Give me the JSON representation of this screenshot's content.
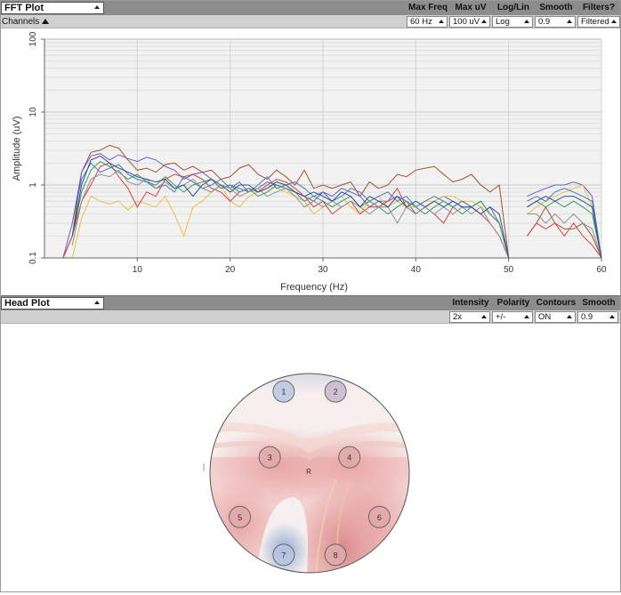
{
  "fft_panel": {
    "widget_label": "FFT Plot",
    "channels_label": "Channels",
    "controls": [
      {
        "label": "Max Freq",
        "value": "60 Hz"
      },
      {
        "label": "Max uV",
        "value": "100 uV"
      },
      {
        "label": "Log/Lin",
        "value": "Log"
      },
      {
        "label": "Smooth",
        "value": "0.9"
      },
      {
        "label": "Filters?",
        "value": "Filtered"
      }
    ]
  },
  "head_panel": {
    "widget_label": "Head Plot",
    "controls": [
      {
        "label": "Intensity",
        "value": "2x"
      },
      {
        "label": "Polarity",
        "value": "+/-"
      },
      {
        "label": "Contours",
        "value": "ON"
      },
      {
        "label": "Smooth",
        "value": "0.9"
      }
    ],
    "reference_label": "R",
    "electrodes": [
      {
        "label": "1",
        "fx": 0.37,
        "fy": 0.09,
        "polarity": "neg"
      },
      {
        "label": "2",
        "fx": 0.63,
        "fy": 0.09,
        "polarity": "neutral"
      },
      {
        "label": "3",
        "fx": 0.3,
        "fy": 0.42,
        "polarity": "pos"
      },
      {
        "label": "4",
        "fx": 0.7,
        "fy": 0.42,
        "polarity": "pos"
      },
      {
        "label": "5",
        "fx": 0.15,
        "fy": 0.72,
        "polarity": "pos"
      },
      {
        "label": "6",
        "fx": 0.85,
        "fy": 0.72,
        "polarity": "pos"
      },
      {
        "label": "7",
        "fx": 0.37,
        "fy": 0.91,
        "polarity": "neg"
      },
      {
        "label": "8",
        "fx": 0.63,
        "fy": 0.91,
        "polarity": "pos"
      }
    ]
  },
  "chart_data": {
    "type": "line",
    "title": "",
    "xlabel": "Frequency (Hz)",
    "ylabel": "Amplitude (uV)",
    "xlim": [
      0,
      60
    ],
    "ylim": [
      0.1,
      100
    ],
    "yscale": "log",
    "grid": true,
    "x_ticks": [
      10,
      20,
      30,
      40,
      50,
      60
    ],
    "y_ticks": [
      0.1,
      1,
      10,
      100
    ],
    "x_tick_labels": [
      "10",
      "20",
      "30",
      "40",
      "50",
      "60"
    ],
    "y_tick_labels": [
      "0.1",
      "1",
      "10",
      "100"
    ],
    "x": [
      1,
      2,
      3,
      4,
      5,
      6,
      7,
      8,
      9,
      10,
      11,
      12,
      13,
      14,
      15,
      16,
      17,
      18,
      19,
      20,
      21,
      22,
      23,
      24,
      25,
      26,
      27,
      28,
      29,
      30,
      31,
      32,
      33,
      34,
      35,
      36,
      37,
      38,
      39,
      40,
      41,
      42,
      43,
      44,
      45,
      46,
      47,
      48,
      49,
      50,
      51,
      52,
      53,
      54,
      55,
      56,
      57,
      58,
      59,
      60
    ],
    "series": [
      {
        "color": "#a0522d",
        "values": [
          0.1,
          0.1,
          0.2,
          1.5,
          2.8,
          3.0,
          3.5,
          3.2,
          2.2,
          1.6,
          1.7,
          1.5,
          1.9,
          2.0,
          1.6,
          1.8,
          1.5,
          1.6,
          1.2,
          1.3,
          1.7,
          1.9,
          1.4,
          1.2,
          1.6,
          1.3,
          1.0,
          1.6,
          0.9,
          1.0,
          0.9,
          1.0,
          1.1,
          0.7,
          1.1,
          0.9,
          1.0,
          1.4,
          1.3,
          1.6,
          1.7,
          1.8,
          1.4,
          1.1,
          1.2,
          1.4,
          1.0,
          0.8,
          1.0,
          0.1,
          null,
          0.2,
          0.3,
          0.5,
          0.3,
          0.25,
          0.25,
          0.3,
          0.2,
          0.1
        ]
      },
      {
        "color": "#6a5acd",
        "values": [
          null,
          0.1,
          0.3,
          1.5,
          2.5,
          2.7,
          2.2,
          2.6,
          2.3,
          2.1,
          2.4,
          2.2,
          1.8,
          1.6,
          1.2,
          1.4,
          1.5,
          1.2,
          0.9,
          1.0,
          0.9,
          0.8,
          0.9,
          1.1,
          1.0,
          0.9,
          0.8,
          0.7,
          0.6,
          0.8,
          0.7,
          0.9,
          0.8,
          0.7,
          0.5,
          0.6,
          0.6,
          0.7,
          0.6,
          0.4,
          0.5,
          0.6,
          0.7,
          0.6,
          0.5,
          0.5,
          0.4,
          0.5,
          0.3,
          0.1,
          null,
          0.7,
          0.8,
          0.9,
          1.0,
          1.0,
          1.1,
          1.0,
          0.7,
          0.1
        ]
      },
      {
        "color": "#e8c040",
        "values": [
          null,
          null,
          0.1,
          0.35,
          0.7,
          0.6,
          0.55,
          0.6,
          0.45,
          0.6,
          0.55,
          0.5,
          0.7,
          0.4,
          0.2,
          0.5,
          0.6,
          0.8,
          1.0,
          0.6,
          0.5,
          0.7,
          0.8,
          1.0,
          0.9,
          0.8,
          0.7,
          0.6,
          0.4,
          0.5,
          0.6,
          0.7,
          0.5,
          0.4,
          0.6,
          0.7,
          0.5,
          0.6,
          0.5,
          0.5,
          0.6,
          0.6,
          0.7,
          0.7,
          0.6,
          0.6,
          0.5,
          0.4,
          0.3,
          0.1,
          null,
          0.4,
          0.5,
          0.6,
          0.7,
          0.8,
          0.9,
          1.0,
          0.5,
          0.1
        ]
      },
      {
        "color": "#d84040",
        "values": [
          null,
          0.1,
          0.2,
          0.6,
          1.0,
          1.8,
          2.0,
          1.3,
          0.9,
          0.5,
          0.8,
          0.7,
          1.2,
          1.4,
          1.3,
          1.4,
          1.2,
          0.9,
          0.8,
          0.6,
          0.8,
          0.9,
          0.8,
          1.0,
          1.2,
          1.1,
          0.9,
          0.7,
          0.5,
          0.6,
          0.4,
          0.5,
          0.6,
          0.4,
          0.5,
          0.5,
          0.6,
          0.9,
          0.5,
          0.4,
          0.5,
          0.4,
          0.3,
          0.5,
          0.6,
          0.5,
          0.4,
          0.3,
          0.2,
          0.1,
          null,
          0.2,
          0.3,
          0.25,
          0.3,
          0.2,
          0.3,
          0.2,
          0.15,
          0.1
        ]
      },
      {
        "color": "#4a7ab8",
        "values": [
          null,
          null,
          0.3,
          1.2,
          2.0,
          1.5,
          1.7,
          1.9,
          1.4,
          1.2,
          1.1,
          0.9,
          1.0,
          0.8,
          1.3,
          1.1,
          0.9,
          1.0,
          1.2,
          0.9,
          1.1,
          0.8,
          1.0,
          1.3,
          0.9,
          1.0,
          1.1,
          0.9,
          0.7,
          0.8,
          0.6,
          0.7,
          0.9,
          0.8,
          0.6,
          0.7,
          0.8,
          0.6,
          0.7,
          0.5,
          0.6,
          0.7,
          0.6,
          0.5,
          0.6,
          0.5,
          0.6,
          0.4,
          0.3,
          0.1,
          null,
          0.6,
          0.7,
          0.6,
          0.8,
          0.9,
          0.8,
          0.7,
          0.6,
          0.1
        ]
      },
      {
        "color": "#3c9a5a",
        "values": [
          null,
          null,
          0.2,
          0.8,
          1.6,
          2.1,
          1.8,
          1.5,
          1.2,
          1.4,
          1.1,
          1.0,
          1.3,
          1.0,
          0.8,
          1.0,
          1.1,
          1.2,
          0.9,
          1.0,
          0.8,
          0.9,
          0.7,
          0.8,
          1.0,
          0.9,
          0.8,
          0.6,
          0.7,
          0.6,
          0.5,
          0.6,
          0.7,
          0.5,
          0.6,
          0.5,
          0.4,
          0.5,
          0.6,
          0.5,
          0.4,
          0.5,
          0.6,
          0.5,
          0.4,
          0.5,
          0.6,
          0.4,
          0.3,
          0.1,
          null,
          0.5,
          0.6,
          0.5,
          0.6,
          0.5,
          0.6,
          0.5,
          0.4,
          0.1
        ]
      },
      {
        "color": "#909090",
        "values": [
          null,
          null,
          0.15,
          0.6,
          1.2,
          1.4,
          1.3,
          1.6,
          1.1,
          1.0,
          1.2,
          0.9,
          1.1,
          0.9,
          1.0,
          1.2,
          0.9,
          0.8,
          1.0,
          0.9,
          0.7,
          0.8,
          0.9,
          0.7,
          0.8,
          0.9,
          0.7,
          0.5,
          0.6,
          0.5,
          0.6,
          0.5,
          0.6,
          0.5,
          0.4,
          0.5,
          0.5,
          0.3,
          0.5,
          0.4,
          0.5,
          0.4,
          0.5,
          0.4,
          0.5,
          0.4,
          0.5,
          0.3,
          0.2,
          0.1,
          null,
          0.4,
          0.4,
          0.3,
          0.4,
          0.3,
          0.4,
          0.3,
          0.25,
          0.1
        ]
      },
      {
        "color": "#2f4f8f",
        "values": [
          null,
          null,
          0.2,
          1.0,
          2.2,
          2.5,
          2.0,
          1.7,
          1.5,
          1.3,
          1.2,
          1.1,
          1.2,
          0.9,
          1.0,
          0.7,
          1.0,
          1.2,
          1.0,
          0.8,
          1.0,
          1.0,
          0.8,
          0.9,
          1.1,
          1.0,
          0.8,
          0.7,
          0.8,
          0.7,
          0.6,
          0.8,
          0.7,
          0.5,
          0.7,
          0.6,
          0.5,
          0.7,
          0.5,
          0.6,
          0.5,
          0.6,
          0.5,
          0.6,
          0.5,
          0.5,
          0.4,
          0.5,
          0.4,
          0.1,
          null,
          0.5,
          0.6,
          0.7,
          0.6,
          0.7,
          0.7,
          0.6,
          0.5,
          0.1
        ]
      }
    ]
  }
}
